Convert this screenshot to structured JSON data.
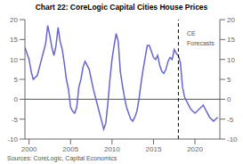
{
  "chart_data": {
    "type": "line",
    "title": "Chart 22: CoreLogic Capital Cities House Prices",
    "source": "Sources: CoreLogic, Capital Economics",
    "x": [
      1999.5,
      2000.0,
      2000.25,
      2000.5,
      2001.0,
      2001.5,
      2002.0,
      2002.25,
      2002.5,
      2002.75,
      2003.0,
      2003.25,
      2003.5,
      2003.75,
      2004.0,
      2004.25,
      2004.5,
      2004.75,
      2005.0,
      2005.25,
      2005.5,
      2005.75,
      2006.0,
      2006.25,
      2006.5,
      2006.75,
      2007.0,
      2007.25,
      2007.5,
      2007.75,
      2008.0,
      2008.25,
      2008.5,
      2008.75,
      2009.0,
      2009.25,
      2009.5,
      2009.75,
      2010.0,
      2010.25,
      2010.5,
      2010.75,
      2011.0,
      2011.25,
      2011.5,
      2011.75,
      2012.0,
      2012.25,
      2012.5,
      2012.75,
      2013.0,
      2013.25,
      2013.5,
      2013.75,
      2014.0,
      2014.25,
      2014.5,
      2014.75,
      2015.0,
      2015.25,
      2015.5,
      2015.75,
      2016.0,
      2016.25,
      2016.5,
      2016.75,
      2017.0,
      2017.25,
      2017.5,
      2017.75,
      2018.0,
      2018.25,
      2018.5,
      2018.75,
      2019.0,
      2019.25,
      2019.5,
      2019.75,
      2020.0,
      2020.25,
      2020.5,
      2020.75,
      2021.0,
      2021.25,
      2021.5,
      2021.75,
      2022.0,
      2022.25,
      2022.5,
      2022.75
    ],
    "values": [
      13.0,
      10.0,
      7.0,
      5.0,
      6.0,
      10.0,
      14.0,
      18.5,
      16.0,
      13.0,
      11.0,
      13.5,
      18.0,
      14.5,
      12.5,
      9.0,
      5.0,
      2.5,
      -2.0,
      -3.0,
      -3.5,
      -2.0,
      3.0,
      5.0,
      8.0,
      9.5,
      8.5,
      7.5,
      5.0,
      2.5,
      0.5,
      -1.5,
      -3.5,
      -5.5,
      -7.5,
      -6.0,
      -1.0,
      5.0,
      10.0,
      13.5,
      16.5,
      14.5,
      7.0,
      3.5,
      0.5,
      -2.0,
      -3.5,
      -5.0,
      -5.5,
      -4.5,
      -3.0,
      0.0,
      4.0,
      7.5,
      10.5,
      13.5,
      13.5,
      12.0,
      10.5,
      10.0,
      11.0,
      8.5,
      7.0,
      6.5,
      7.5,
      9.5,
      10.5,
      10.0,
      12.5,
      11.5,
      11.0,
      9.0,
      3.0,
      0.5,
      -0.5,
      -1.5,
      -2.5,
      -3.0,
      -3.5,
      -3.0,
      -2.5,
      -2.0,
      -1.5,
      -2.5,
      -3.5,
      -4.5,
      -5.0,
      -5.5,
      -5.0,
      -4.5
    ],
    "color": "#6666cc",
    "xlim": [
      1999.5,
      2023.0
    ],
    "xticks": [
      2000,
      2005,
      2010,
      2015,
      2020
    ],
    "ylim": [
      -10,
      20
    ],
    "yticks": [
      -10,
      -5,
      0,
      5,
      10,
      15,
      20
    ],
    "y2lim": [
      -10,
      20
    ],
    "y2ticks": [
      -10,
      -5,
      0,
      5,
      10,
      15,
      20
    ],
    "hlines": [
      {
        "y": 0,
        "color": "#555555"
      }
    ],
    "vlines": [
      {
        "x": 2018.0,
        "color": "black",
        "line_style": "dashed"
      }
    ],
    "annotations": [
      {
        "text": "CE",
        "x": 2018.5,
        "y": 16.5
      },
      {
        "text": "Forecasts",
        "x": 2018.5,
        "y": 14.0
      }
    ]
  }
}
